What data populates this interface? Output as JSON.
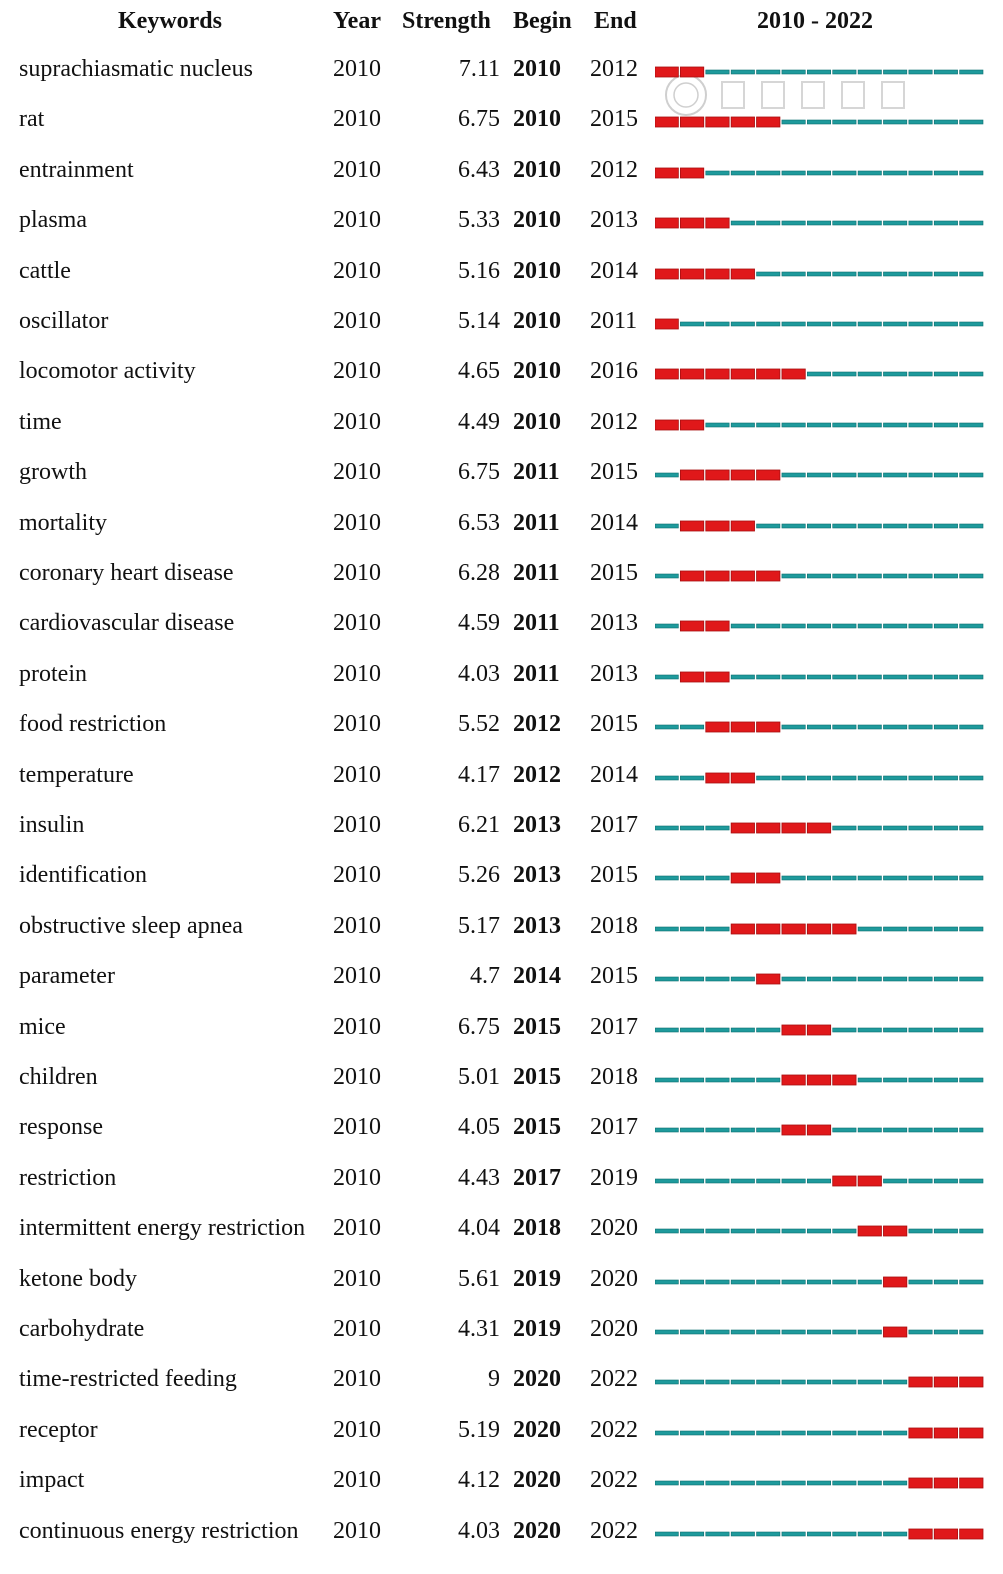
{
  "header": {
    "keywords": "Keywords",
    "year": "Year",
    "strength": "Strength",
    "begin": "Begin",
    "end": "End",
    "range": "2010 - 2022"
  },
  "colors": {
    "burst": "#e0181a",
    "burst_edge": "#a80f10",
    "base": "#1e9a9c",
    "base_edge": "#0d6f70"
  },
  "chart_data": {
    "type": "table",
    "x_start": 2010,
    "x_end": 2022,
    "rows": [
      {
        "keyword": "suprachiasmatic nucleus",
        "year": "2010",
        "strength": "7.11",
        "begin": "2010",
        "end": "2012"
      },
      {
        "keyword": "rat",
        "year": "2010",
        "strength": "6.75",
        "begin": "2010",
        "end": "2015"
      },
      {
        "keyword": "entrainment",
        "year": "2010",
        "strength": "6.43",
        "begin": "2010",
        "end": "2012"
      },
      {
        "keyword": "plasma",
        "year": "2010",
        "strength": "5.33",
        "begin": "2010",
        "end": "2013"
      },
      {
        "keyword": "cattle",
        "year": "2010",
        "strength": "5.16",
        "begin": "2010",
        "end": "2014"
      },
      {
        "keyword": "oscillator",
        "year": "2010",
        "strength": "5.14",
        "begin": "2010",
        "end": "2011"
      },
      {
        "keyword": "locomotor activity",
        "year": "2010",
        "strength": "4.65",
        "begin": "2010",
        "end": "2016"
      },
      {
        "keyword": "time",
        "year": "2010",
        "strength": "4.49",
        "begin": "2010",
        "end": "2012"
      },
      {
        "keyword": "growth",
        "year": "2010",
        "strength": "6.75",
        "begin": "2011",
        "end": "2015"
      },
      {
        "keyword": "mortality",
        "year": "2010",
        "strength": "6.53",
        "begin": "2011",
        "end": "2014"
      },
      {
        "keyword": "coronary heart disease",
        "year": "2010",
        "strength": "6.28",
        "begin": "2011",
        "end": "2015"
      },
      {
        "keyword": "cardiovascular disease",
        "year": "2010",
        "strength": "4.59",
        "begin": "2011",
        "end": "2013"
      },
      {
        "keyword": "protein",
        "year": "2010",
        "strength": "4.03",
        "begin": "2011",
        "end": "2013"
      },
      {
        "keyword": "food restriction",
        "year": "2010",
        "strength": "5.52",
        "begin": "2012",
        "end": "2015"
      },
      {
        "keyword": "temperature",
        "year": "2010",
        "strength": "4.17",
        "begin": "2012",
        "end": "2014"
      },
      {
        "keyword": "insulin",
        "year": "2010",
        "strength": "6.21",
        "begin": "2013",
        "end": "2017"
      },
      {
        "keyword": "identification",
        "year": "2010",
        "strength": "5.26",
        "begin": "2013",
        "end": "2015"
      },
      {
        "keyword": "obstructive sleep apnea",
        "year": "2010",
        "strength": "5.17",
        "begin": "2013",
        "end": "2018"
      },
      {
        "keyword": "parameter",
        "year": "2010",
        "strength": "4.7",
        "begin": "2014",
        "end": "2015"
      },
      {
        "keyword": "mice",
        "year": "2010",
        "strength": "6.75",
        "begin": "2015",
        "end": "2017"
      },
      {
        "keyword": "children",
        "year": "2010",
        "strength": "5.01",
        "begin": "2015",
        "end": "2018"
      },
      {
        "keyword": "response",
        "year": "2010",
        "strength": "4.05",
        "begin": "2015",
        "end": "2017"
      },
      {
        "keyword": "restriction",
        "year": "2010",
        "strength": "4.43",
        "begin": "2017",
        "end": "2019"
      },
      {
        "keyword": "intermittent energy restriction",
        "year": "2010",
        "strength": "4.04",
        "begin": "2018",
        "end": "2020"
      },
      {
        "keyword": "ketone body",
        "year": "2010",
        "strength": "5.61",
        "begin": "2019",
        "end": "2020"
      },
      {
        "keyword": "carbohydrate",
        "year": "2010",
        "strength": "4.31",
        "begin": "2019",
        "end": "2020"
      },
      {
        "keyword": "time-restricted feeding",
        "year": "2010",
        "strength": "9",
        "begin": "2020",
        "end": "2022"
      },
      {
        "keyword": "receptor",
        "year": "2010",
        "strength": "5.19",
        "begin": "2020",
        "end": "2022"
      },
      {
        "keyword": "impact",
        "year": "2010",
        "strength": "4.12",
        "begin": "2020",
        "end": "2022"
      },
      {
        "keyword": "continuous energy restriction",
        "year": "2010",
        "strength": "4.03",
        "begin": "2020",
        "end": "2022"
      }
    ]
  }
}
